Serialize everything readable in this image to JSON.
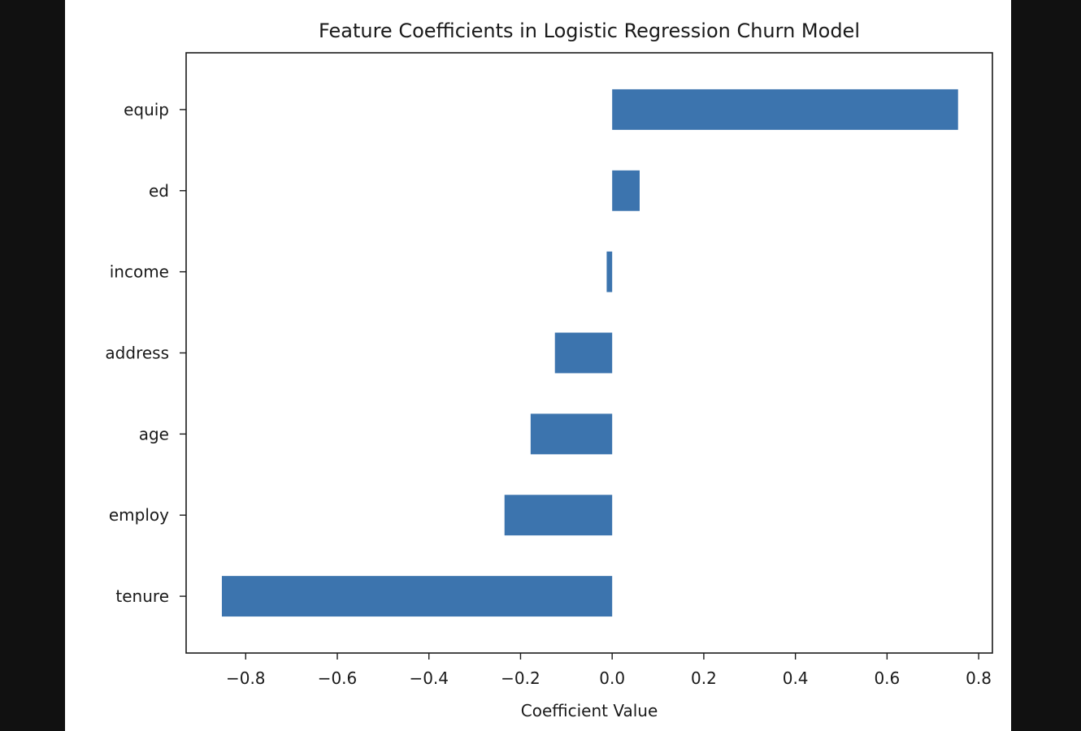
{
  "chart_data": {
    "type": "bar",
    "orientation": "horizontal",
    "title": "Feature Coefficients in Logistic Regression Churn Model",
    "xlabel": "Coefficient Value",
    "ylabel": "",
    "categories": [
      "tenure",
      "employ",
      "age",
      "address",
      "income",
      "ed",
      "equip"
    ],
    "values": [
      -0.852,
      -0.235,
      -0.178,
      -0.125,
      -0.012,
      0.06,
      0.755
    ],
    "xlim": [
      -0.93,
      0.83
    ],
    "xticks": [
      -0.8,
      -0.6,
      -0.4,
      -0.2,
      0.0,
      0.2,
      0.4,
      0.6,
      0.8
    ],
    "xtick_labels": [
      "−0.8",
      "−0.6",
      "−0.4",
      "−0.2",
      "0.0",
      "0.2",
      "0.4",
      "0.6",
      "0.8"
    ],
    "bar_color": "#3c74ae",
    "grid": false,
    "legend": "none"
  }
}
